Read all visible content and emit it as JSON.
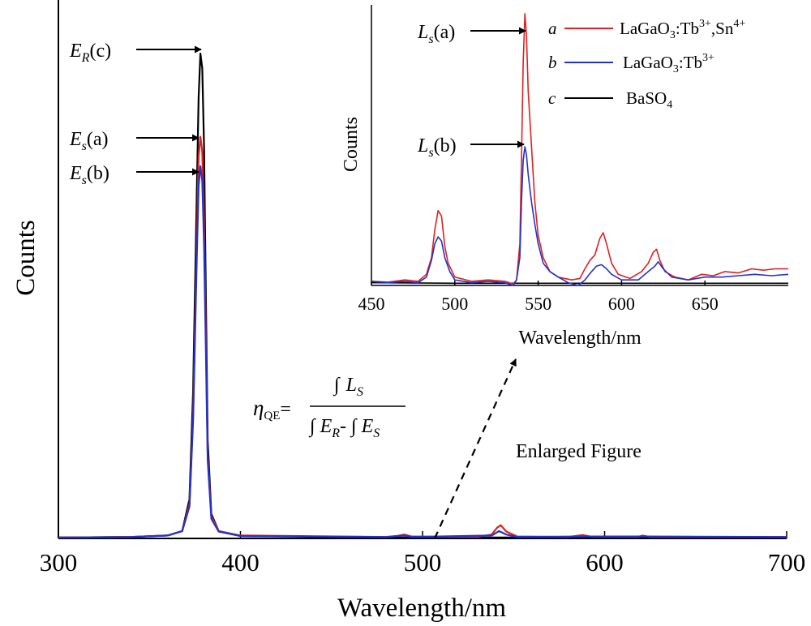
{
  "chart_data": [
    {
      "id": "main",
      "type": "line",
      "xlabel": "Wavelength/nm",
      "ylabel": "Counts",
      "xlim": [
        300,
        700
      ],
      "x_ticks": [
        "300",
        "400",
        "500",
        "600",
        "700"
      ],
      "y_ticks": [],
      "ylim": [
        0,
        1.0
      ],
      "grid": false,
      "series": [
        {
          "key": "c",
          "color": "#000000",
          "points": [
            [
              300,
              0.002
            ],
            [
              340,
              0.003
            ],
            [
              360,
              0.006
            ],
            [
              368,
              0.015
            ],
            [
              372,
              0.08
            ],
            [
              374,
              0.3
            ],
            [
              376,
              0.7
            ],
            [
              377,
              0.9
            ],
            [
              378,
              0.99
            ],
            [
              379,
              0.96
            ],
            [
              380,
              0.8
            ],
            [
              381,
              0.5
            ],
            [
              382,
              0.2
            ],
            [
              384,
              0.05
            ],
            [
              388,
              0.015
            ],
            [
              400,
              0.005
            ],
            [
              480,
              0.002
            ],
            [
              540,
              0.002
            ],
            [
              700,
              0.002
            ]
          ]
        },
        {
          "key": "a",
          "color": "#e02020",
          "points": [
            [
              300,
              0.002
            ],
            [
              340,
              0.003
            ],
            [
              360,
              0.006
            ],
            [
              368,
              0.015
            ],
            [
              372,
              0.07
            ],
            [
              374,
              0.25
            ],
            [
              376,
              0.6
            ],
            [
              377,
              0.78
            ],
            [
              378,
              0.82
            ],
            [
              379,
              0.79
            ],
            [
              380,
              0.65
            ],
            [
              381,
              0.42
            ],
            [
              382,
              0.17
            ],
            [
              384,
              0.045
            ],
            [
              388,
              0.015
            ],
            [
              400,
              0.006
            ],
            [
              480,
              0.003
            ],
            [
              486,
              0.005
            ],
            [
              490,
              0.008
            ],
            [
              494,
              0.004
            ],
            [
              530,
              0.003
            ],
            [
              538,
              0.008
            ],
            [
              541,
              0.022
            ],
            [
              543,
              0.027
            ],
            [
              546,
              0.014
            ],
            [
              552,
              0.004
            ],
            [
              580,
              0.003
            ],
            [
              588,
              0.007
            ],
            [
              592,
              0.004
            ],
            [
              618,
              0.003
            ],
            [
              621,
              0.006
            ],
            [
              625,
              0.003
            ],
            [
              700,
              0.003
            ]
          ]
        },
        {
          "key": "b",
          "color": "#2233cc",
          "points": [
            [
              300,
              0.002
            ],
            [
              340,
              0.003
            ],
            [
              360,
              0.006
            ],
            [
              368,
              0.015
            ],
            [
              372,
              0.065
            ],
            [
              374,
              0.24
            ],
            [
              376,
              0.57
            ],
            [
              377,
              0.72
            ],
            [
              378,
              0.76
            ],
            [
              379,
              0.73
            ],
            [
              380,
              0.6
            ],
            [
              381,
              0.39
            ],
            [
              382,
              0.16
            ],
            [
              384,
              0.04
            ],
            [
              388,
              0.014
            ],
            [
              400,
              0.005
            ],
            [
              480,
              0.003
            ],
            [
              490,
              0.006
            ],
            [
              494,
              0.003
            ],
            [
              538,
              0.006
            ],
            [
              542,
              0.015
            ],
            [
              546,
              0.008
            ],
            [
              552,
              0.003
            ],
            [
              588,
              0.004
            ],
            [
              622,
              0.004
            ],
            [
              700,
              0.003
            ]
          ]
        }
      ]
    },
    {
      "id": "inset",
      "type": "line",
      "xlabel": "Wavelength/nm",
      "ylabel": "Counts",
      "xlim": [
        450,
        700
      ],
      "x_ticks": [
        "450",
        "500",
        "550",
        "600",
        "650"
      ],
      "y_ticks": [],
      "ylim": [
        0,
        1.0
      ],
      "grid": false,
      "series": [
        {
          "key": "a",
          "label": "LaGaO",
          "label_sub": "3",
          "label_tail": ":Tb",
          "label_sup": "3+",
          "label_extra": ",Sn",
          "label_extra_sup": "4+",
          "color": "#e02020",
          "points": [
            [
              450,
              0.015
            ],
            [
              460,
              0.012
            ],
            [
              470,
              0.02
            ],
            [
              478,
              0.015
            ],
            [
              483,
              0.04
            ],
            [
              486,
              0.1
            ],
            [
              488,
              0.2
            ],
            [
              490,
              0.27
            ],
            [
              492,
              0.25
            ],
            [
              494,
              0.14
            ],
            [
              496,
              0.08
            ],
            [
              500,
              0.03
            ],
            [
              510,
              0.015
            ],
            [
              520,
              0.02
            ],
            [
              530,
              0.015
            ],
            [
              535,
              0.005
            ],
            [
              537,
              0.02
            ],
            [
              539,
              0.15
            ],
            [
              540,
              0.45
            ],
            [
              541,
              0.8
            ],
            [
              542,
              0.98
            ],
            [
              543,
              0.9
            ],
            [
              544,
              0.7
            ],
            [
              546,
              0.5
            ],
            [
              548,
              0.3
            ],
            [
              550,
              0.18
            ],
            [
              553,
              0.1
            ],
            [
              557,
              0.05
            ],
            [
              562,
              0.03
            ],
            [
              570,
              0.02
            ],
            [
              575,
              0.025
            ],
            [
              578,
              0.06
            ],
            [
              581,
              0.09
            ],
            [
              584,
              0.11
            ],
            [
              587,
              0.17
            ],
            [
              589,
              0.19
            ],
            [
              591,
              0.15
            ],
            [
              594,
              0.08
            ],
            [
              598,
              0.04
            ],
            [
              605,
              0.025
            ],
            [
              612,
              0.05
            ],
            [
              616,
              0.08
            ],
            [
              619,
              0.12
            ],
            [
              621,
              0.13
            ],
            [
              623,
              0.09
            ],
            [
              626,
              0.05
            ],
            [
              632,
              0.03
            ],
            [
              640,
              0.02
            ],
            [
              648,
              0.04
            ],
            [
              655,
              0.035
            ],
            [
              662,
              0.05
            ],
            [
              670,
              0.045
            ],
            [
              678,
              0.06
            ],
            [
              685,
              0.055
            ],
            [
              692,
              0.06
            ],
            [
              700,
              0.06
            ]
          ]
        },
        {
          "key": "b",
          "label": "LaGaO",
          "label_sub": "3",
          "label_tail": ":Tb",
          "label_sup": "3+",
          "label_extra": "",
          "label_extra_sup": "",
          "color": "#2233cc",
          "points": [
            [
              450,
              0.015
            ],
            [
              460,
              0.01
            ],
            [
              470,
              0.015
            ],
            [
              478,
              0.01
            ],
            [
              483,
              0.03
            ],
            [
              486,
              0.09
            ],
            [
              488,
              0.15
            ],
            [
              490,
              0.175
            ],
            [
              492,
              0.16
            ],
            [
              494,
              0.1
            ],
            [
              497,
              0.05
            ],
            [
              500,
              0.02
            ],
            [
              510,
              0.01
            ],
            [
              520,
              0.015
            ],
            [
              530,
              0.01
            ],
            [
              535,
              0.0
            ],
            [
              537,
              0.02
            ],
            [
              539,
              0.1
            ],
            [
              540,
              0.3
            ],
            [
              541,
              0.45
            ],
            [
              542,
              0.5
            ],
            [
              543,
              0.47
            ],
            [
              544,
              0.4
            ],
            [
              546,
              0.3
            ],
            [
              548,
              0.22
            ],
            [
              550,
              0.15
            ],
            [
              553,
              0.08
            ],
            [
              557,
              0.05
            ],
            [
              562,
              0.03
            ],
            [
              568,
              0.01
            ],
            [
              574,
              0.0
            ],
            [
              578,
              0.02
            ],
            [
              582,
              0.05
            ],
            [
              585,
              0.07
            ],
            [
              588,
              0.075
            ],
            [
              591,
              0.06
            ],
            [
              594,
              0.04
            ],
            [
              600,
              0.02
            ],
            [
              610,
              0.02
            ],
            [
              616,
              0.05
            ],
            [
              620,
              0.07
            ],
            [
              622,
              0.085
            ],
            [
              625,
              0.06
            ],
            [
              630,
              0.03
            ],
            [
              640,
              0.02
            ],
            [
              650,
              0.03
            ],
            [
              660,
              0.03
            ],
            [
              670,
              0.035
            ],
            [
              680,
              0.04
            ],
            [
              690,
              0.035
            ],
            [
              700,
              0.04
            ]
          ]
        },
        {
          "key": "c",
          "label": "BaSO",
          "label_sub": "4",
          "label_tail": "",
          "label_sup": "",
          "label_extra": "",
          "label_extra_sup": "",
          "color": "#000000",
          "points": [
            [
              450,
              0.01
            ],
            [
              500,
              0.008
            ],
            [
              550,
              0.008
            ],
            [
              600,
              0.008
            ],
            [
              650,
              0.008
            ],
            [
              700,
              0.008
            ]
          ]
        }
      ]
    }
  ],
  "annotations": {
    "er_c": {
      "main": "E",
      "sub": "R",
      "tail": "(c)"
    },
    "es_a": {
      "main": "E",
      "sub": "s",
      "tail": "(a)"
    },
    "es_b": {
      "main": "E",
      "sub": "s",
      "tail": "(b)"
    },
    "ls_a": {
      "main": "L",
      "sub": "s",
      "tail": "(a)"
    },
    "ls_b": {
      "main": "L",
      "sub": "s",
      "tail": "(b)"
    },
    "enlarged": "Enlarged Figure",
    "formula": {
      "eta": "η",
      "eta_sub": "QE",
      "equals": "=",
      "num_int": "∫",
      "num_L": "L",
      "num_sub": "S",
      "den_int1": "∫",
      "den_E1": "E",
      "den_sub1": "R",
      "den_minus": "- ∫",
      "den_E2": "E",
      "den_sub2": "S"
    }
  },
  "legend_keys": {
    "a": "a",
    "b": "b",
    "c": "c"
  }
}
